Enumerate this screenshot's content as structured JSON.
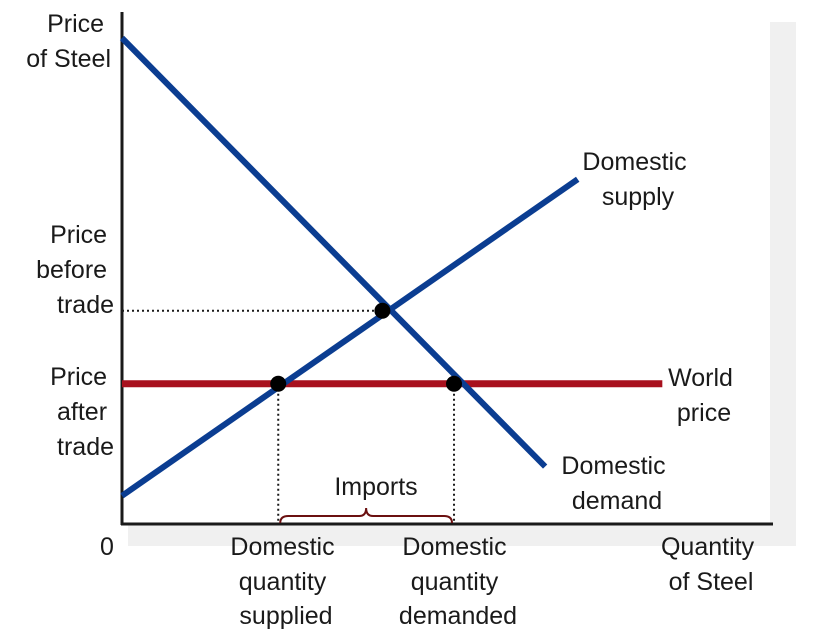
{
  "chart_data": {
    "type": "line",
    "title": "",
    "ylabel": [
      "Price",
      "of Steel"
    ],
    "xlabel": [
      "Quantity",
      "of Steel"
    ],
    "origin_label": "0",
    "xlim": [
      0,
      100
    ],
    "ylim": [
      0,
      100
    ],
    "series": [
      {
        "name": "Domestic demand",
        "labels": [
          "Domestic",
          "demand"
        ],
        "color": "#0b3d91",
        "points": [
          [
            0,
            100
          ],
          [
            65,
            12
          ]
        ]
      },
      {
        "name": "Domestic supply",
        "labels": [
          "Domestic",
          "supply"
        ],
        "color": "#0b3d91",
        "points": [
          [
            0,
            6
          ],
          [
            70,
            71
          ]
        ]
      },
      {
        "name": "World price",
        "labels": [
          "World",
          "price"
        ],
        "color": "#a8111e",
        "points": [
          [
            0,
            29
          ],
          [
            83,
            29
          ]
        ]
      }
    ],
    "points": [
      {
        "x": 40,
        "y": 44
      },
      {
        "x": 24,
        "y": 29
      },
      {
        "x": 51,
        "y": 29
      }
    ],
    "price_levels": {
      "before": {
        "value": 44,
        "labels": [
          "Price",
          "before",
          "trade"
        ]
      },
      "after": {
        "value": 29,
        "labels": [
          "Price",
          "after",
          "trade"
        ]
      }
    },
    "quantity_labels": {
      "supplied": {
        "value": 24,
        "labels": [
          "Domestic",
          "quantity",
          "supplied"
        ]
      },
      "demanded": {
        "value": 51,
        "labels": [
          "Domestic",
          "quantity",
          "demanded"
        ]
      }
    },
    "annotations": [
      {
        "text": "Imports",
        "from": 24,
        "to": 51
      }
    ],
    "colors": {
      "axis": "#1a1a1a",
      "guide": "#1a1a1a",
      "dot": "#000000",
      "brace": "#6b1010",
      "shadow": "#f0f0f0"
    }
  }
}
